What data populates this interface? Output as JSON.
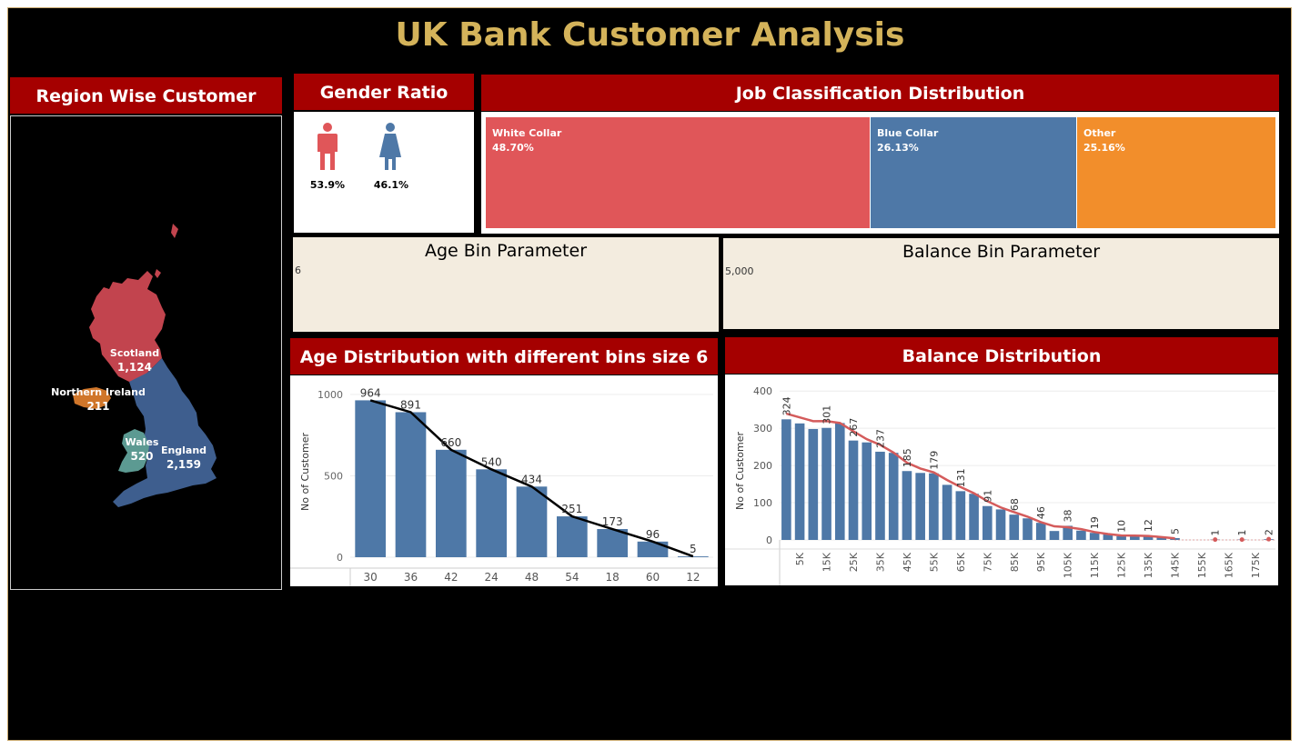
{
  "dashboard": {
    "title": "UK Bank Customer Analysis"
  },
  "region": {
    "header": "Region Wise Customer",
    "items": [
      {
        "name": "Scotland",
        "value": "1,124",
        "color": "#c2444e"
      },
      {
        "name": "Northern Ireland",
        "value": "211",
        "color": "#d0762a"
      },
      {
        "name": "Wales",
        "value": "520",
        "color": "#5c9a92"
      },
      {
        "name": "England",
        "value": "2,159",
        "color": "#3e5e8e"
      }
    ]
  },
  "gender": {
    "header": "Gender Ratio",
    "male": {
      "pct": "53.9%",
      "color": "#e05659",
      "icon": "male-person-icon"
    },
    "female": {
      "pct": "46.1%",
      "color": "#4e78a7",
      "icon": "female-person-icon"
    }
  },
  "jobs": {
    "header": "Job Classification Distribution",
    "cells": [
      {
        "label": "White Collar",
        "pct": "48.70%",
        "share": 48.7,
        "color": "#e05659"
      },
      {
        "label": "Blue Collar",
        "pct": "26.13%",
        "share": 26.13,
        "color": "#4e78a7"
      },
      {
        "label": "Other",
        "pct": "25.16%",
        "share": 25.16,
        "color": "#f28e2b"
      }
    ]
  },
  "age_param": {
    "title": "Age Bin Parameter",
    "value": "6"
  },
  "balance_param": {
    "title": "Balance Bin Parameter",
    "value": "5,000"
  },
  "age_chart": {
    "header": "Age Distribution with different bins size 6"
  },
  "balance_chart": {
    "header": "Balance Distribution"
  },
  "chart_data": [
    {
      "type": "bar",
      "title": "Age Distribution with different bins size 6",
      "ylabel": "No of Customer",
      "xlabel": "",
      "categories": [
        "30",
        "36",
        "42",
        "24",
        "48",
        "54",
        "18",
        "60",
        "12"
      ],
      "values": [
        964,
        891,
        660,
        540,
        434,
        251,
        173,
        96,
        5
      ],
      "line_overlay": true,
      "ylim": [
        0,
        1050
      ],
      "yticks": [
        0,
        500,
        1000
      ],
      "bar_color": "#4e78a7",
      "line_color": "#000000"
    },
    {
      "type": "bar",
      "title": "Balance Distribution",
      "ylabel": "No of Customer",
      "xlabel": "",
      "categories": [
        "0K",
        "5K",
        "10K",
        "15K",
        "20K",
        "25K",
        "30K",
        "35K",
        "40K",
        "45K",
        "50K",
        "55K",
        "60K",
        "65K",
        "70K",
        "75K",
        "80K",
        "85K",
        "90K",
        "95K",
        "100K",
        "105K",
        "110K",
        "115K",
        "120K",
        "125K",
        "130K",
        "135K",
        "140K",
        "145K",
        "150K",
        "155K",
        "160K",
        "165K",
        "170K",
        "175K",
        "180K"
      ],
      "tick_labels": [
        "5K",
        "15K",
        "25K",
        "35K",
        "45K",
        "55K",
        "65K",
        "75K",
        "85K",
        "95K",
        "105K",
        "115K",
        "125K",
        "135K",
        "145K",
        "155K",
        "165K",
        "175K"
      ],
      "values": [
        324,
        313,
        298,
        301,
        314,
        267,
        262,
        237,
        234,
        185,
        180,
        179,
        148,
        131,
        124,
        91,
        82,
        68,
        58,
        46,
        24,
        38,
        25,
        19,
        16,
        10,
        12,
        12,
        7,
        5,
        0,
        0,
        1,
        0,
        1,
        0,
        2
      ],
      "data_labels": {
        "0": "324",
        "3": "301",
        "5": "267",
        "7": "237",
        "9": "185",
        "11": "179",
        "13": "131",
        "15": "91",
        "17": "68",
        "19": "46",
        "21": "38",
        "23": "19",
        "25": "10",
        "27": "12",
        "29": "5",
        "32": "1",
        "34": "1",
        "36": "2"
      },
      "ylim": [
        0,
        420
      ],
      "yticks": [
        0,
        100,
        200,
        300,
        400
      ],
      "bar_color": "#4e78a7",
      "line_color": "#d45b5b"
    }
  ]
}
